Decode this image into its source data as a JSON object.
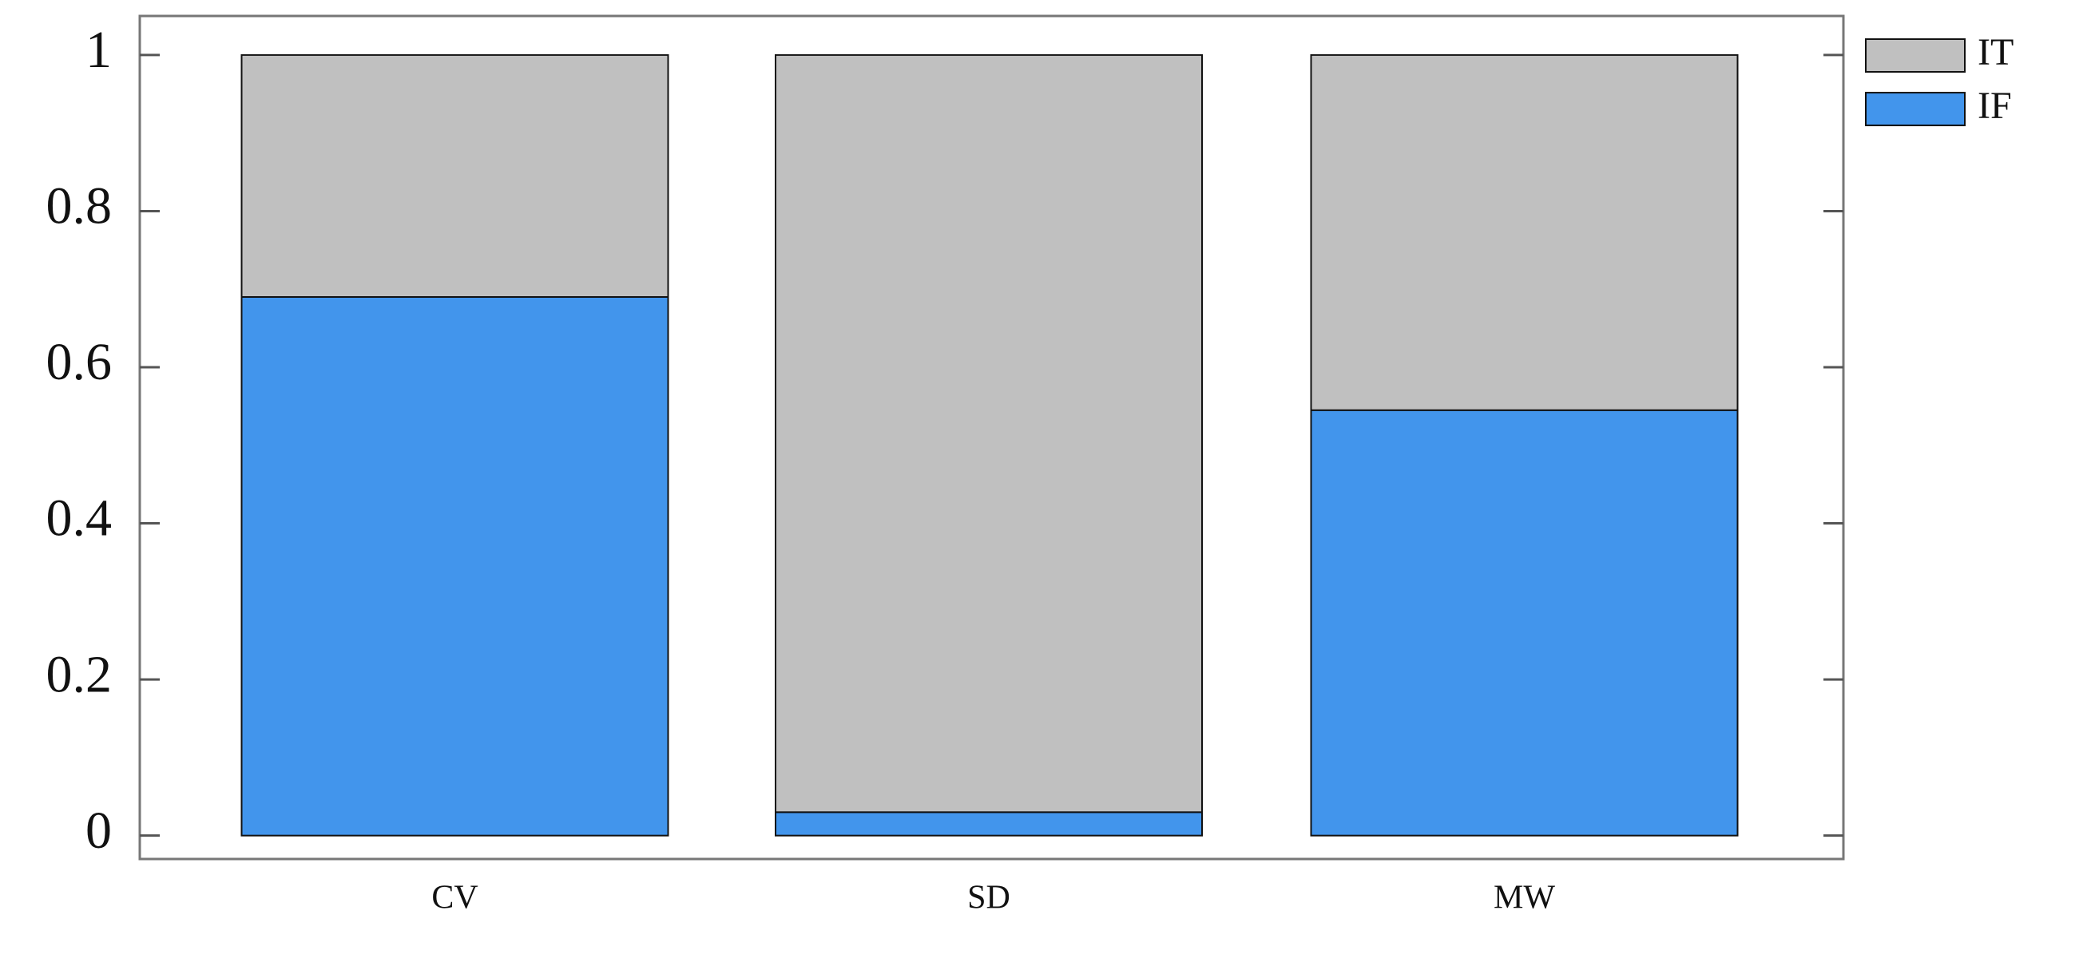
{
  "chart_data": {
    "type": "stacked-bar",
    "categories": [
      "CV",
      "SD",
      "MW"
    ],
    "series": [
      {
        "name": "IF",
        "color": "#4295ec",
        "values": [
          0.69,
          0.03,
          0.545
        ]
      },
      {
        "name": "IT",
        "color": "#c0c0c0",
        "values": [
          0.31,
          0.97,
          0.455
        ]
      }
    ],
    "ylim": [
      -0.03,
      1.05
    ],
    "yticks": [
      0,
      0.2,
      0.4,
      0.6,
      0.8,
      1
    ],
    "legend": "top-right-outside"
  }
}
